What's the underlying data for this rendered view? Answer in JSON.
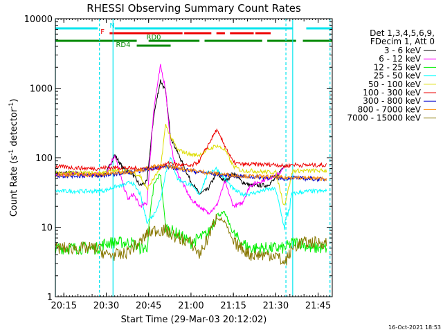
{
  "chart_data": {
    "type": "line",
    "title": "RHESSI Observing Summary Count Rates",
    "xlabel": "Start Time (29-Mar-03 20:12:02)",
    "ylabel": "Count Rate (s",
    "ylabel_sup": "-1",
    "ylabel_tail": " detector",
    "ylabel_sup2": "-1",
    "ylabel_close": ")",
    "y_scale": "log",
    "ylim": [
      1,
      10000
    ],
    "xlim_minutes": [
      20.2,
      21.8333
    ],
    "x_ticks": [
      {
        "t": 20.25,
        "label": "20:15"
      },
      {
        "t": 20.5,
        "label": "20:30"
      },
      {
        "t": 20.75,
        "label": "20:45"
      },
      {
        "t": 21.0,
        "label": "21:00"
      },
      {
        "t": 21.25,
        "label": "21:15"
      },
      {
        "t": 21.5,
        "label": "21:30"
      },
      {
        "t": 21.75,
        "label": "21:45"
      }
    ],
    "y_ticks": [
      {
        "v": 1,
        "label": "1"
      },
      {
        "v": 10,
        "label": "10"
      },
      {
        "v": 100,
        "label": "100"
      },
      {
        "v": 1000,
        "label": "1000"
      },
      {
        "v": 10000,
        "label": "10000"
      }
    ],
    "legend_position": "right",
    "legend_header": [
      "Det 1,3,4,5,6,9,",
      "FDecim 1, Att 0"
    ],
    "timestamp": "16-Oct-2021 18:53",
    "flags": {
      "N": {
        "label": "N",
        "color": "#00e5ee",
        "segments": [
          [
            20.2,
            20.45
          ],
          [
            20.55,
            21.6
          ],
          [
            21.68,
            21.833
          ]
        ]
      },
      "F": {
        "label": "F",
        "color": "#ee0000",
        "segments": [
          [
            20.52,
            20.95
          ],
          [
            20.96,
            21.12
          ],
          [
            21.15,
            21.2
          ],
          [
            21.23,
            21.37
          ],
          [
            21.38,
            21.47
          ]
        ]
      },
      "RD0": {
        "label": "RD0",
        "color": "#008800",
        "segments": [
          [
            20.2,
            20.68
          ],
          [
            20.75,
            21.05
          ],
          [
            21.08,
            21.42
          ],
          [
            21.45,
            21.62
          ],
          [
            21.66,
            21.833
          ]
        ]
      },
      "RD4": {
        "label": "RD4",
        "color": "#008800",
        "segments": [
          [
            20.68,
            20.88
          ]
        ]
      }
    },
    "vlines": [
      {
        "t": 20.2,
        "color": "#00e5ee",
        "style": "solid"
      },
      {
        "t": 20.46,
        "color": "#00e5ee",
        "style": "dashed"
      },
      {
        "t": 20.54,
        "color": "#00e5ee",
        "style": "solid"
      },
      {
        "t": 21.56,
        "color": "#00e5ee",
        "style": "dashed"
      },
      {
        "t": 21.6,
        "color": "#00e5ee",
        "style": "solid"
      },
      {
        "t": 21.82,
        "color": "#00e5ee",
        "style": "dashed"
      }
    ],
    "series": [
      {
        "name": "3 - 6 keV",
        "color": "#000000",
        "t": [
          20.2,
          20.3,
          20.38,
          20.45,
          20.5,
          20.55,
          20.6,
          20.65,
          20.7,
          20.74,
          20.78,
          20.82,
          20.85,
          20.88,
          20.92,
          21.0,
          21.05,
          21.1,
          21.15,
          21.2,
          21.25,
          21.3,
          21.35,
          21.45,
          21.5,
          21.55
        ],
        "v": [
          60,
          60,
          58,
          55,
          60,
          110,
          70,
          60,
          40,
          45,
          400,
          1300,
          900,
          200,
          120,
          45,
          30,
          35,
          60,
          45,
          60,
          45,
          40,
          40,
          50,
          80
        ]
      },
      {
        "name": "6 - 12 keV",
        "color": "#ff00ff",
        "t": [
          20.2,
          20.3,
          20.4,
          20.45,
          20.5,
          20.55,
          20.6,
          20.63,
          20.66,
          20.7,
          20.74,
          20.78,
          20.82,
          20.85,
          20.88,
          20.92,
          21.0,
          21.1,
          21.15,
          21.2,
          21.25,
          21.3,
          21.35,
          21.45,
          21.5,
          21.55
        ],
        "v": [
          58,
          58,
          57,
          58,
          60,
          110,
          40,
          25,
          30,
          20,
          22,
          500,
          2100,
          1000,
          150,
          60,
          25,
          16,
          20,
          45,
          20,
          22,
          40,
          50,
          55,
          70
        ]
      },
      {
        "name": "12 - 25 keV",
        "color": "#00ee00",
        "t": [
          20.2,
          20.3,
          20.4,
          20.45,
          20.5,
          20.55,
          20.6,
          20.65,
          20.7,
          20.74,
          20.78,
          20.82,
          20.85,
          20.88,
          20.92,
          21.0,
          21.05,
          21.1,
          21.15,
          21.2,
          21.25,
          21.3,
          21.35,
          21.45,
          21.5,
          21.55,
          21.6,
          21.65,
          21.7,
          21.75,
          21.8
        ],
        "v": [
          5,
          5,
          5,
          5,
          6,
          6,
          6,
          6,
          5,
          5,
          40,
          60,
          10,
          9,
          8,
          6,
          7,
          8,
          15,
          16,
          8,
          6,
          5,
          5,
          5,
          5,
          6,
          6,
          5,
          5,
          5
        ]
      },
      {
        "name": "25 - 50 keV",
        "color": "#00ffff",
        "t": [
          20.2,
          20.3,
          20.4,
          20.45,
          20.5,
          20.55,
          20.6,
          20.65,
          20.7,
          20.74,
          20.78,
          20.82,
          20.85,
          20.88,
          20.92,
          21.0,
          21.05,
          21.1,
          21.15,
          21.2,
          21.25,
          21.3,
          21.35,
          21.45,
          21.5,
          21.55,
          21.6,
          21.65,
          21.7,
          21.75,
          21.8
        ],
        "v": [
          33,
          33,
          33,
          33,
          34,
          38,
          40,
          45,
          30,
          12,
          15,
          25,
          60,
          100,
          50,
          40,
          30,
          60,
          70,
          50,
          35,
          30,
          30,
          35,
          35,
          10,
          30,
          32,
          33,
          33,
          33
        ]
      },
      {
        "name": "50 - 100 keV",
        "color": "#dddd00",
        "t": [
          20.2,
          20.3,
          20.4,
          20.45,
          20.5,
          20.55,
          20.6,
          20.65,
          20.7,
          20.74,
          20.78,
          20.82,
          20.85,
          20.88,
          20.92,
          21.0,
          21.05,
          21.1,
          21.15,
          21.2,
          21.25,
          21.3,
          21.35,
          21.45,
          21.5,
          21.55,
          21.6,
          21.65,
          21.7,
          21.75,
          21.8
        ],
        "v": [
          60,
          60,
          60,
          60,
          62,
          65,
          65,
          62,
          55,
          35,
          50,
          70,
          300,
          200,
          130,
          110,
          110,
          130,
          150,
          130,
          75,
          65,
          65,
          62,
          62,
          20,
          65,
          65,
          65,
          65,
          65
        ]
      },
      {
        "name": "100 - 300 keV",
        "color": "#ee0000",
        "t": [
          20.2,
          20.3,
          20.4,
          20.45,
          20.5,
          20.55,
          20.6,
          20.65,
          20.7,
          20.74,
          20.78,
          20.82,
          20.85,
          20.88,
          20.92,
          21.0,
          21.05,
          21.1,
          21.15,
          21.2,
          21.25,
          21.3,
          21.35,
          21.45,
          21.5,
          21.55,
          21.6,
          21.65,
          21.7,
          21.75,
          21.8
        ],
        "v": [
          75,
          72,
          70,
          70,
          72,
          72,
          72,
          70,
          70,
          70,
          70,
          72,
          80,
          85,
          80,
          75,
          90,
          150,
          250,
          150,
          85,
          80,
          80,
          80,
          80,
          75,
          80,
          78,
          78,
          78,
          78
        ]
      },
      {
        "name": "300 - 800 keV",
        "color": "#0000cc",
        "t": [
          20.2,
          20.3,
          20.4,
          20.45,
          20.5,
          20.55,
          20.6,
          20.65,
          20.7,
          20.74,
          20.78,
          20.82,
          20.85,
          20.88,
          20.92,
          21.0,
          21.05,
          21.1,
          21.15,
          21.2,
          21.25,
          21.3,
          21.35,
          21.45,
          21.5,
          21.55,
          21.6,
          21.65,
          21.7,
          21.75,
          21.8
        ],
        "v": [
          55,
          55,
          55,
          55,
          56,
          58,
          60,
          62,
          65,
          68,
          72,
          75,
          75,
          72,
          70,
          65,
          62,
          60,
          58,
          56,
          55,
          54,
          53,
          52,
          52,
          50,
          52,
          50,
          50,
          49,
          49
        ]
      },
      {
        "name": "800 - 7000 keV",
        "color": "#ff8800",
        "t": [
          20.2,
          20.3,
          20.4,
          20.45,
          20.5,
          20.55,
          20.6,
          20.65,
          20.7,
          20.74,
          20.78,
          20.82,
          20.85,
          20.88,
          20.92,
          21.0,
          21.05,
          21.1,
          21.15,
          21.2,
          21.25,
          21.3,
          21.35,
          21.45,
          21.5,
          21.55,
          21.6,
          21.65,
          21.7,
          21.75,
          21.8
        ],
        "v": [
          57,
          57,
          57,
          57,
          58,
          60,
          62,
          64,
          66,
          70,
          74,
          76,
          76,
          74,
          72,
          66,
          63,
          61,
          59,
          57,
          56,
          55,
          54,
          53,
          53,
          51,
          53,
          51,
          51,
          50,
          50
        ]
      },
      {
        "name": "7000 - 15000 keV",
        "color": "#887700",
        "t": [
          20.2,
          20.3,
          20.4,
          20.45,
          20.5,
          20.55,
          20.6,
          20.65,
          20.7,
          20.74,
          20.78,
          20.82,
          20.85,
          20.88,
          20.92,
          21.0,
          21.05,
          21.1,
          21.15,
          21.2,
          21.25,
          21.3,
          21.35,
          21.45,
          21.5,
          21.55,
          21.6,
          21.65,
          21.7,
          21.75,
          21.8
        ],
        "v": [
          5,
          5,
          5,
          5,
          4,
          4,
          4,
          5,
          6,
          8,
          9,
          9,
          9,
          8,
          7,
          6,
          4,
          7,
          14,
          12,
          6,
          5,
          4,
          4,
          4,
          3,
          5,
          6,
          6,
          6,
          6
        ]
      }
    ]
  }
}
